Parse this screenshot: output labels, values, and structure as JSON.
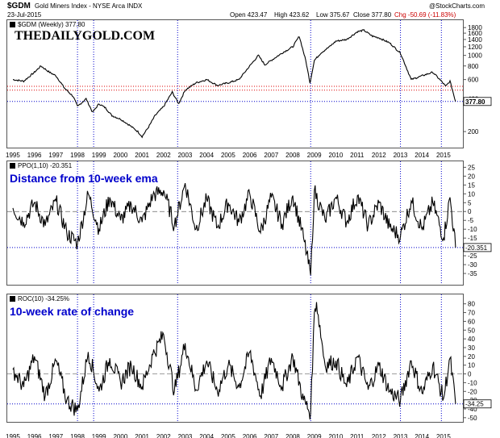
{
  "header": {
    "symbol": "$GDM",
    "name": "Gold Miners Index - NYSE Arca INDX",
    "date": "23-Jul-2015",
    "open": "Open 423.47",
    "high": "High 423.62",
    "low": "Low 375.67",
    "close": "Close 377.80",
    "chg": "Chg -50.69 (-11.83%)",
    "chg_color": "#cc0000",
    "credit": "@StockCharts.com"
  },
  "logo": "THEDAILYGOLD.COM",
  "panels": {
    "price": {
      "legend": "$GDM (Weekly) 377.80",
      "last_label": "377.80"
    },
    "ppo": {
      "legend": "PPO(1,10) -20.351",
      "annotation": "Distance from 10-week ema",
      "last_label": "-20.351"
    },
    "roc": {
      "legend": "ROC(10) -34.25%",
      "annotation": "10-week rate of change",
      "last_label": "-34.25"
    }
  },
  "colors": {
    "line": "#000000",
    "guide_blue": "#0000cc",
    "guide_red": "#dd0000",
    "annotation": "#0000cc"
  },
  "chart_data": [
    {
      "type": "line",
      "title": "$GDM (Weekly) 377.80",
      "scale": "log",
      "ylim": [
        150,
        2000
      ],
      "y_ticks": [
        200,
        400,
        600,
        800,
        1000,
        1200,
        1400,
        1600,
        1800
      ],
      "x": [
        1995.0,
        1995.5,
        1996.0,
        1996.3,
        1996.7,
        1997.0,
        1997.4,
        1997.8,
        1998.0,
        1998.4,
        1998.7,
        1999.0,
        1999.3,
        1999.6,
        2000.0,
        2000.4,
        2000.8,
        2001.0,
        2001.3,
        2001.6,
        2002.0,
        2002.4,
        2002.7,
        2003.0,
        2003.5,
        2004.0,
        2004.5,
        2005.0,
        2005.5,
        2006.0,
        2006.4,
        2006.7,
        2007.0,
        2007.5,
        2008.0,
        2008.3,
        2008.6,
        2008.8,
        2009.0,
        2009.3,
        2009.7,
        2010.0,
        2010.5,
        2011.0,
        2011.3,
        2011.7,
        2012.0,
        2012.5,
        2013.0,
        2013.3,
        2013.5,
        2014.0,
        2014.5,
        2014.9,
        2015.1,
        2015.3,
        2015.56
      ],
      "values": [
        600,
        580,
        700,
        800,
        700,
        650,
        500,
        420,
        340,
        400,
        300,
        360,
        330,
        280,
        260,
        230,
        200,
        180,
        220,
        280,
        340,
        460,
        360,
        480,
        560,
        600,
        530,
        560,
        600,
        800,
        1000,
        820,
        900,
        1050,
        1200,
        1500,
        900,
        560,
        900,
        1050,
        1200,
        1350,
        1400,
        1650,
        1700,
        1500,
        1450,
        1300,
        1050,
        750,
        600,
        650,
        700,
        580,
        520,
        580,
        377.8
      ],
      "guide_lines_red": [
        480,
        520
      ],
      "guide_line_blue": 377.8
    },
    {
      "type": "line",
      "title": "PPO(1,10) -20.351",
      "ylim": [
        -40,
        27
      ],
      "y_ticks": [
        25,
        20,
        15,
        10,
        5,
        0,
        -5,
        -10,
        -15,
        -20,
        -25,
        -30,
        -35
      ],
      "x": [
        1995.0,
        1995.5,
        1996.0,
        1996.5,
        1997.0,
        1997.5,
        1998.0,
        1998.5,
        1999.0,
        1999.5,
        2000.0,
        2000.5,
        2001.0,
        2001.5,
        2002.0,
        2002.5,
        2003.0,
        2003.5,
        2004.0,
        2004.5,
        2005.0,
        2005.5,
        2006.0,
        2006.5,
        2007.0,
        2007.5,
        2008.0,
        2008.5,
        2008.83,
        2009.0,
        2009.5,
        2010.0,
        2010.5,
        2011.0,
        2011.5,
        2012.0,
        2012.5,
        2013.0,
        2013.5,
        2014.0,
        2014.5,
        2015.0,
        2015.3,
        2015.56
      ],
      "values": [
        2,
        -6,
        5,
        -8,
        6,
        -12,
        -18,
        10,
        -10,
        8,
        -5,
        4,
        -6,
        9,
        12,
        -8,
        16,
        -10,
        7,
        -9,
        5,
        -6,
        10,
        -12,
        8,
        -7,
        9,
        -15,
        -36,
        12,
        -5,
        8,
        -6,
        9,
        -8,
        5,
        -9,
        -14,
        6,
        -10,
        5,
        -15,
        8,
        -20.351
      ],
      "guide_line_blue": -20.351
    },
    {
      "type": "line",
      "title": "ROC(10) -34.25%",
      "ylim": [
        -52,
        88
      ],
      "y_ticks": [
        80,
        70,
        60,
        50,
        40,
        30,
        20,
        10,
        0,
        -10,
        -20,
        -30,
        -40,
        -50
      ],
      "x": [
        1995.0,
        1995.5,
        1996.0,
        1996.5,
        1997.0,
        1997.5,
        1998.0,
        1998.5,
        1999.0,
        1999.5,
        2000.0,
        2000.5,
        2001.0,
        2001.5,
        2002.0,
        2002.5,
        2003.0,
        2003.5,
        2004.0,
        2004.5,
        2005.0,
        2005.5,
        2006.0,
        2006.5,
        2007.0,
        2007.5,
        2008.0,
        2008.5,
        2008.83,
        2009.0,
        2009.1,
        2009.5,
        2010.0,
        2010.5,
        2011.0,
        2011.5,
        2012.0,
        2012.5,
        2013.0,
        2013.5,
        2014.0,
        2014.5,
        2015.0,
        2015.3,
        2015.56
      ],
      "values": [
        5,
        -15,
        20,
        -25,
        15,
        -30,
        -42,
        25,
        -20,
        18,
        -10,
        10,
        -15,
        22,
        45,
        -20,
        35,
        -18,
        15,
        -20,
        10,
        -15,
        25,
        -25,
        18,
        -15,
        20,
        -30,
        -45,
        70,
        82,
        10,
        15,
        -15,
        20,
        -18,
        10,
        -20,
        -30,
        15,
        -22,
        10,
        -28,
        18,
        -34.25
      ],
      "guide_line_blue": -34.25
    }
  ],
  "x_axis_years": [
    "1995",
    "1996",
    "1997",
    "1998",
    "1999",
    "2000",
    "2001",
    "2002",
    "2003",
    "2004",
    "2005",
    "2006",
    "2007",
    "2008",
    "2009",
    "2010",
    "2011",
    "2012",
    "2013",
    "2014",
    "2015"
  ],
  "vertical_guides_years": [
    1998.0,
    1998.75,
    2002.65,
    2008.83,
    2013.0,
    2014.9
  ]
}
